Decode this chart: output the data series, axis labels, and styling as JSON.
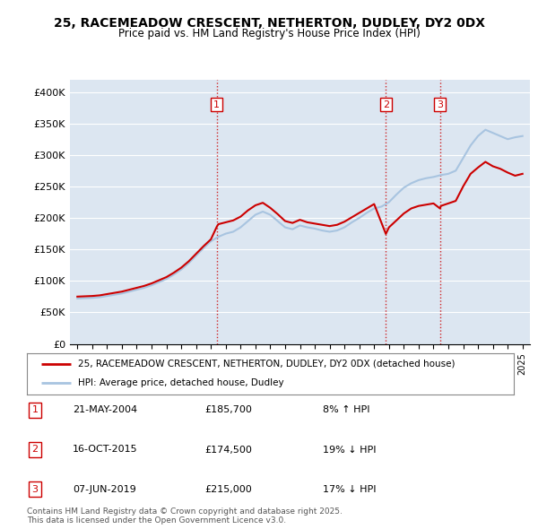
{
  "title": "25, RACEMEADOW CRESCENT, NETHERTON, DUDLEY, DY2 0DX",
  "subtitle": "Price paid vs. HM Land Registry's House Price Index (HPI)",
  "ylim": [
    0,
    420000
  ],
  "yticks": [
    0,
    50000,
    100000,
    150000,
    200000,
    250000,
    300000,
    350000,
    400000
  ],
  "ytick_labels": [
    "£0",
    "£50K",
    "£100K",
    "£150K",
    "£200K",
    "£250K",
    "£300K",
    "£350K",
    "£400K"
  ],
  "background_color": "#dce6f1",
  "legend_label_red": "25, RACEMEADOW CRESCENT, NETHERTON, DUDLEY, DY2 0DX (detached house)",
  "legend_label_blue": "HPI: Average price, detached house, Dudley",
  "footer": "Contains HM Land Registry data © Crown copyright and database right 2025.\nThis data is licensed under the Open Government Licence v3.0.",
  "table_rows": [
    [
      "1",
      "21-MAY-2004",
      "£185,700",
      "8% ↑ HPI"
    ],
    [
      "2",
      "16-OCT-2015",
      "£174,500",
      "19% ↓ HPI"
    ],
    [
      "3",
      "07-JUN-2019",
      "£215,000",
      "17% ↓ HPI"
    ]
  ],
  "vline_years": [
    2004.39,
    2015.79,
    2019.44
  ],
  "red_color": "#cc0000",
  "blue_color": "#a8c4e0",
  "hpi_x": [
    1995,
    1995.5,
    1996,
    1996.5,
    1997,
    1997.5,
    1998,
    1998.5,
    1999,
    1999.5,
    2000,
    2000.5,
    2001,
    2001.5,
    2002,
    2002.5,
    2003,
    2003.5,
    2004,
    2004.5,
    2005,
    2005.5,
    2006,
    2006.5,
    2007,
    2007.5,
    2008,
    2008.5,
    2009,
    2009.5,
    2010,
    2010.5,
    2011,
    2011.5,
    2012,
    2012.5,
    2013,
    2013.5,
    2014,
    2014.5,
    2015,
    2015.5,
    2016,
    2016.5,
    2017,
    2017.5,
    2018,
    2018.5,
    2019,
    2019.5,
    2020,
    2020.5,
    2021,
    2021.5,
    2022,
    2022.5,
    2023,
    2023.5,
    2024,
    2024.5,
    2025
  ],
  "hpi_y": [
    72000,
    72500,
    73000,
    74000,
    76000,
    78000,
    80000,
    83000,
    86000,
    89000,
    93000,
    98000,
    103000,
    110000,
    118000,
    128000,
    140000,
    152000,
    163000,
    170000,
    175000,
    178000,
    185000,
    195000,
    205000,
    210000,
    205000,
    195000,
    185000,
    182000,
    188000,
    185000,
    183000,
    180000,
    178000,
    180000,
    185000,
    193000,
    200000,
    208000,
    215000,
    218000,
    225000,
    237000,
    248000,
    255000,
    260000,
    263000,
    265000,
    268000,
    270000,
    275000,
    295000,
    315000,
    330000,
    340000,
    335000,
    330000,
    325000,
    328000,
    330000
  ],
  "red_x": [
    1995,
    1995.5,
    1996,
    1996.5,
    1997,
    1997.5,
    1998,
    1998.5,
    1999,
    1999.5,
    2000,
    2000.5,
    2001,
    2001.5,
    2002,
    2002.5,
    2003,
    2003.5,
    2004,
    2004.39,
    2004.5,
    2005,
    2005.5,
    2006,
    2006.5,
    2007,
    2007.5,
    2008,
    2008.5,
    2009,
    2009.5,
    2010,
    2010.5,
    2011,
    2011.5,
    2012,
    2012.5,
    2013,
    2013.5,
    2014,
    2014.5,
    2015,
    2015.79,
    2016,
    2016.5,
    2017,
    2017.5,
    2018,
    2018.5,
    2019,
    2019.44,
    2019.5,
    2020,
    2020.5,
    2021,
    2021.5,
    2022,
    2022.5,
    2023,
    2023.5,
    2024,
    2024.5,
    2025
  ],
  "red_y": [
    75000,
    75500,
    76000,
    77000,
    79000,
    81000,
    83000,
    86000,
    89000,
    92000,
    96000,
    101000,
    106000,
    113000,
    121000,
    131000,
    143000,
    155000,
    166000,
    185700,
    190000,
    193000,
    196000,
    202000,
    212000,
    220000,
    224000,
    216000,
    206000,
    195000,
    192000,
    197000,
    193000,
    191000,
    189000,
    187000,
    189000,
    194000,
    201000,
    208000,
    215000,
    222000,
    174500,
    185000,
    196000,
    207000,
    215000,
    219000,
    221000,
    223000,
    215000,
    219000,
    223000,
    227000,
    250000,
    270000,
    280000,
    289000,
    282000,
    278000,
    272000,
    267000,
    270000
  ]
}
